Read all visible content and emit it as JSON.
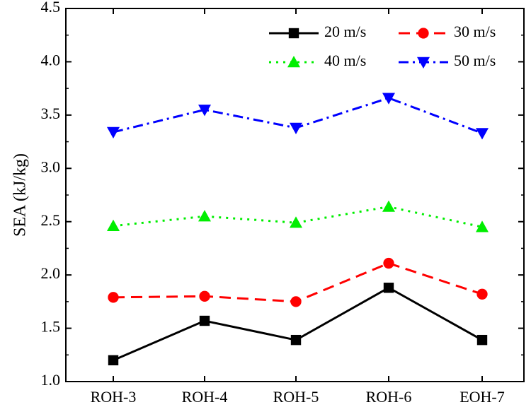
{
  "chart_data": {
    "type": "line",
    "title": "",
    "xlabel": "",
    "ylabel": "SEA (kJ/kg)",
    "ylim": [
      1.0,
      4.5
    ],
    "yticks": [
      "1.0",
      "1.5",
      "2.0",
      "2.5",
      "3.0",
      "3.5",
      "4.0",
      "4.5"
    ],
    "categories": [
      "ROH-3",
      "ROH-4",
      "ROH-5",
      "ROH-6",
      "EOH-7"
    ],
    "grid": false,
    "legend_position": "top-right",
    "series": [
      {
        "name": "20 m/s",
        "values": [
          1.2,
          1.57,
          1.39,
          1.88,
          1.39
        ],
        "color": "#000000",
        "marker": "square",
        "line_style": "solid"
      },
      {
        "name": "30 m/s",
        "values": [
          1.79,
          1.8,
          1.75,
          2.11,
          1.82
        ],
        "color": "#ff0000",
        "marker": "circle",
        "line_style": "dash"
      },
      {
        "name": "40 m/s",
        "values": [
          2.46,
          2.55,
          2.49,
          2.64,
          2.45
        ],
        "color": "#00ee00",
        "marker": "triangle-up",
        "line_style": "dot"
      },
      {
        "name": "50 m/s",
        "values": [
          3.34,
          3.55,
          3.38,
          3.66,
          3.33
        ],
        "color": "#0000ff",
        "marker": "triangle-down",
        "line_style": "dash-dot"
      }
    ]
  }
}
